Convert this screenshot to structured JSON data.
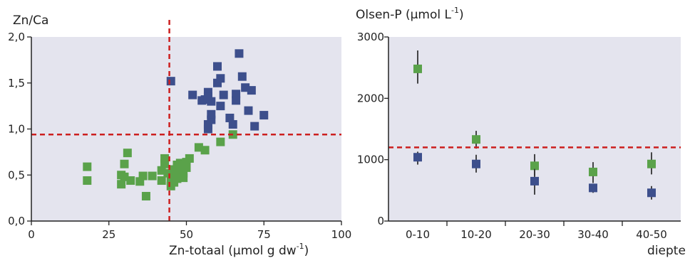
{
  "chart_data": [
    {
      "type": "scatter",
      "ylabel": "Zn/Ca",
      "xlabel_main": "Zn-totaal (µmol g dw",
      "xlabel_sup": "-1",
      "xlabel_close": ")",
      "xlim": [
        0,
        100
      ],
      "ylim": [
        0,
        2
      ],
      "xticks": [
        0,
        25,
        50,
        75,
        100
      ],
      "xtick_labels": [
        "0",
        "25",
        "50",
        "75",
        "100"
      ],
      "yticks": [
        0,
        0.5,
        1,
        1.5,
        2
      ],
      "ytick_labels": [
        "0,0",
        "0,5",
        "1,0",
        "1,5",
        "2,0"
      ],
      "vline_x": 44.5,
      "hline_y": 0.94,
      "grid": false,
      "colors": {
        "blue": "#3d4f8c",
        "green": "#5aa24a",
        "plot_bg": "#e4e4ee",
        "ref_line": "#cc1f1f"
      },
      "series": [
        {
          "color": "blue",
          "points": [
            [
              45,
              1.52
            ],
            [
              52,
              1.37
            ],
            [
              55,
              1.31
            ],
            [
              56,
              1.32
            ],
            [
              57,
              1.4
            ],
            [
              57,
              1.35
            ],
            [
              58,
              1.3
            ],
            [
              57,
              1.05
            ],
            [
              57,
              1.0
            ],
            [
              58,
              1.1
            ],
            [
              58,
              1.16
            ],
            [
              60,
              1.5
            ],
            [
              60,
              1.68
            ],
            [
              61,
              1.55
            ],
            [
              61,
              1.25
            ],
            [
              62,
              1.37
            ],
            [
              64,
              1.12
            ],
            [
              65,
              1.05
            ],
            [
              66,
              1.38
            ],
            [
              66,
              1.31
            ],
            [
              67,
              1.82
            ],
            [
              68,
              1.57
            ],
            [
              69,
              1.45
            ],
            [
              70,
              1.2
            ],
            [
              71,
              1.42
            ],
            [
              72,
              1.03
            ],
            [
              75,
              1.15
            ]
          ]
        },
        {
          "color": "green",
          "points": [
            [
              18,
              0.59
            ],
            [
              18,
              0.44
            ],
            [
              29,
              0.5
            ],
            [
              29,
              0.4
            ],
            [
              30,
              0.62
            ],
            [
              30,
              0.48
            ],
            [
              31,
              0.74
            ],
            [
              32,
              0.44
            ],
            [
              35,
              0.43
            ],
            [
              36,
              0.49
            ],
            [
              37,
              0.27
            ],
            [
              39,
              0.49
            ],
            [
              42,
              0.55
            ],
            [
              42,
              0.44
            ],
            [
              43,
              0.68
            ],
            [
              43,
              0.62
            ],
            [
              44,
              0.52
            ],
            [
              45,
              0.38
            ],
            [
              45,
              0.44
            ],
            [
              46,
              0.42
            ],
            [
              46,
              0.49
            ],
            [
              46,
              0.56
            ],
            [
              47,
              0.61
            ],
            [
              47,
              0.55
            ],
            [
              47,
              0.46
            ],
            [
              48,
              0.58
            ],
            [
              48,
              0.63
            ],
            [
              49,
              0.52
            ],
            [
              49,
              0.47
            ],
            [
              50,
              0.58
            ],
            [
              50,
              0.64
            ],
            [
              51,
              0.68
            ],
            [
              54,
              0.8
            ],
            [
              56,
              0.77
            ],
            [
              61,
              0.86
            ],
            [
              65,
              0.94
            ]
          ]
        }
      ]
    },
    {
      "type": "scatter",
      "ylabel_main": "Olsen-P (µmol L",
      "ylabel_sup": "-1",
      "ylabel_close": ")",
      "xlabel": "diepte",
      "categories": [
        "0-10",
        "10-20",
        "20-30",
        "30-40",
        "40-50"
      ],
      "ylim": [
        0,
        3000
      ],
      "yticks": [
        0,
        1000,
        2000,
        3000
      ],
      "ytick_labels": [
        "0",
        "1000",
        "2000",
        "3000"
      ],
      "hline_y": 1200,
      "grid": false,
      "series": [
        {
          "color": "green",
          "values": [
            2480,
            1330,
            900,
            800,
            930
          ],
          "error_low": [
            2240,
            1180,
            740,
            620,
            760
          ],
          "error_high": [
            2780,
            1470,
            1090,
            960,
            1120
          ]
        },
        {
          "color": "blue",
          "values": [
            1040,
            930,
            650,
            540,
            460
          ],
          "error_low": [
            920,
            790,
            430,
            460,
            350
          ],
          "error_high": [
            1130,
            1080,
            850,
            600,
            570
          ]
        }
      ]
    }
  ]
}
